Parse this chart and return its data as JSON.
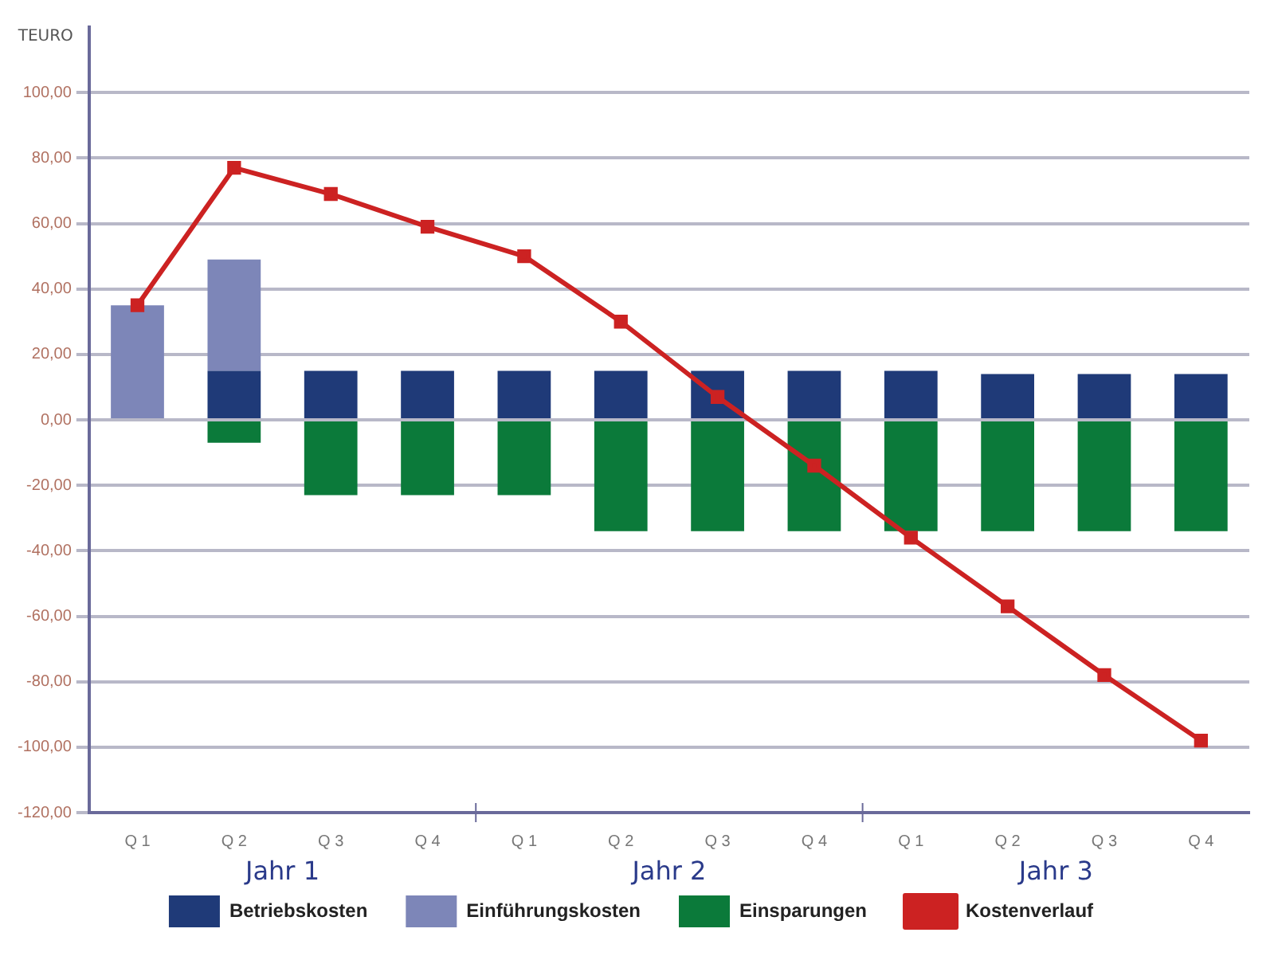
{
  "chart_data": {
    "type": "bar",
    "stacked": true,
    "ylabel": "TEURO",
    "categories": [
      "Q 1",
      "Q 2",
      "Q 3",
      "Q 4",
      "Q 1",
      "Q 2",
      "Q 3",
      "Q 4",
      "Q 1",
      "Q 2",
      "Q 3",
      "Q 4"
    ],
    "annotations": [
      "Jahr 1",
      "Jahr 2",
      "Jahr 3"
    ],
    "series": [
      {
        "name": "Betriebskosten",
        "color": "#1f3a78",
        "values": [
          null,
          15,
          15,
          15,
          15,
          15,
          15,
          15,
          15,
          14,
          14,
          14
        ]
      },
      {
        "name": "Einführungskosten",
        "color": "#7d86b8",
        "values": [
          35,
          34,
          null,
          null,
          null,
          null,
          null,
          null,
          null,
          null,
          null,
          null
        ]
      },
      {
        "name": "Einsparungen",
        "color": "#0b7a3a",
        "values": [
          null,
          -7,
          -23,
          -23,
          -23,
          -34,
          -34,
          -34,
          -34,
          -34,
          -34,
          -34
        ]
      },
      {
        "name": "Kostenverlauf",
        "type": "line",
        "color": "#cc2222",
        "marker": "square",
        "values": [
          35,
          77,
          69,
          59,
          50,
          30,
          7,
          -14,
          -36,
          -57,
          -78,
          -98
        ]
      }
    ],
    "ylim": [
      -120,
      120
    ],
    "yticks": [
      {
        "value": -120,
        "label": "-120,00"
      },
      {
        "value": -100,
        "label": "-100,00"
      },
      {
        "value": -80,
        "label": "-80,00"
      },
      {
        "value": -60,
        "label": "-60,00"
      },
      {
        "value": -40,
        "label": "-40,00"
      },
      {
        "value": -20,
        "label": "-20,00"
      },
      {
        "value": 0,
        "label": "0,00"
      },
      {
        "value": 20,
        "label": "20,00"
      },
      {
        "value": 40,
        "label": "40,00"
      },
      {
        "value": 60,
        "label": "60,00"
      },
      {
        "value": 80,
        "label": "80,00"
      },
      {
        "value": 100,
        "label": "100,00"
      }
    ],
    "grid": "y",
    "legend": "bottom"
  }
}
